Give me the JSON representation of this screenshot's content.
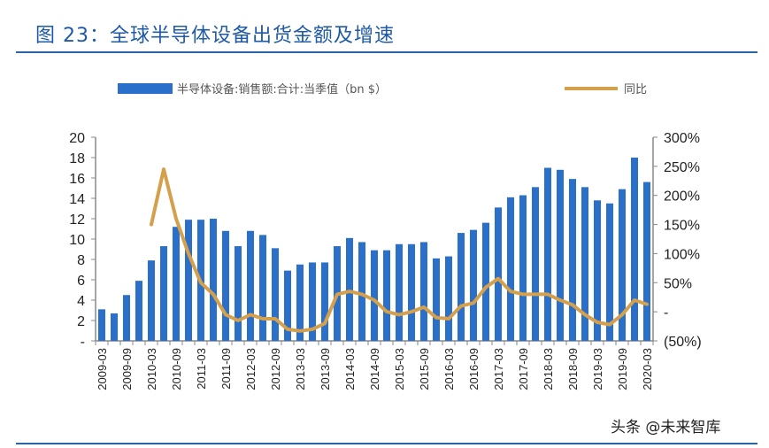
{
  "title": "图 23：全球半导体设备出货金额及增速",
  "watermark": "头条 @未来智库",
  "chart_data": {
    "type": "bar+line",
    "title": "图 23：全球半导体设备出货金额及增速",
    "legend_position": "top",
    "grid": false,
    "categories": [
      "2009-03",
      "2009-06",
      "2009-09",
      "2009-12",
      "2010-03",
      "2010-06",
      "2010-09",
      "2010-12",
      "2011-03",
      "2011-06",
      "2011-09",
      "2011-12",
      "2012-03",
      "2012-06",
      "2012-09",
      "2012-12",
      "2013-03",
      "2013-06",
      "2013-09",
      "2013-12",
      "2014-03",
      "2014-06",
      "2014-09",
      "2014-12",
      "2015-03",
      "2015-06",
      "2015-09",
      "2015-12",
      "2016-03",
      "2016-06",
      "2016-09",
      "2016-12",
      "2017-03",
      "2017-06",
      "2017-09",
      "2017-12",
      "2018-03",
      "2018-06",
      "2018-09",
      "2018-12",
      "2019-03",
      "2019-06",
      "2019-09",
      "2019-12",
      "2020-03"
    ],
    "x_tick_labels": [
      "2009-03",
      "2009-09",
      "2010-03",
      "2010-09",
      "2011-03",
      "2011-09",
      "2012-03",
      "2012-09",
      "2013-03",
      "2013-09",
      "2014-03",
      "2014-09",
      "2015-03",
      "2015-09",
      "2016-03",
      "2016-09",
      "2017-03",
      "2017-09",
      "2018-03",
      "2018-09",
      "2019-03",
      "2019-09",
      "2020-03"
    ],
    "series": [
      {
        "name": "半导体设备:销售额:合计:当季值（bn $）",
        "type": "bar",
        "axis": "left",
        "color": "#2a6fc9",
        "values": [
          3.1,
          2.7,
          4.5,
          5.9,
          7.9,
          9.3,
          11.2,
          11.9,
          11.9,
          12.0,
          10.8,
          9.3,
          10.8,
          10.4,
          9.1,
          6.9,
          7.5,
          7.7,
          7.7,
          9.3,
          10.1,
          9.7,
          8.9,
          8.9,
          9.5,
          9.5,
          9.7,
          8.1,
          8.3,
          10.6,
          10.9,
          11.6,
          13.1,
          14.1,
          14.3,
          15.1,
          17.0,
          16.8,
          15.9,
          15.1,
          13.8,
          13.5,
          14.9,
          18.0,
          15.6
        ]
      },
      {
        "name": "同比",
        "type": "line",
        "axis": "right",
        "color": "#d4a04c",
        "values": [
          null,
          null,
          null,
          null,
          150,
          245,
          160,
          100,
          50,
          30,
          -5,
          -15,
          -5,
          -12,
          -12,
          -30,
          -33,
          -30,
          -20,
          30,
          35,
          30,
          20,
          0,
          -5,
          0,
          8,
          -10,
          -12,
          10,
          15,
          42,
          57,
          35,
          30,
          30,
          30,
          20,
          12,
          -5,
          -18,
          -22,
          -5,
          20,
          13
        ]
      }
    ],
    "left_axis": {
      "ylim": [
        0,
        20
      ],
      "tick_labels": [
        "-",
        "2",
        "4",
        "6",
        "8",
        "10",
        "12",
        "14",
        "16",
        "18",
        "20"
      ]
    },
    "right_axis": {
      "ylim": [
        -50,
        300
      ],
      "tick_labels": [
        "(50%)",
        "-",
        "50%",
        "100%",
        "150%",
        "200%",
        "250%",
        "300%"
      ],
      "negative_color": "#e8413c"
    }
  }
}
